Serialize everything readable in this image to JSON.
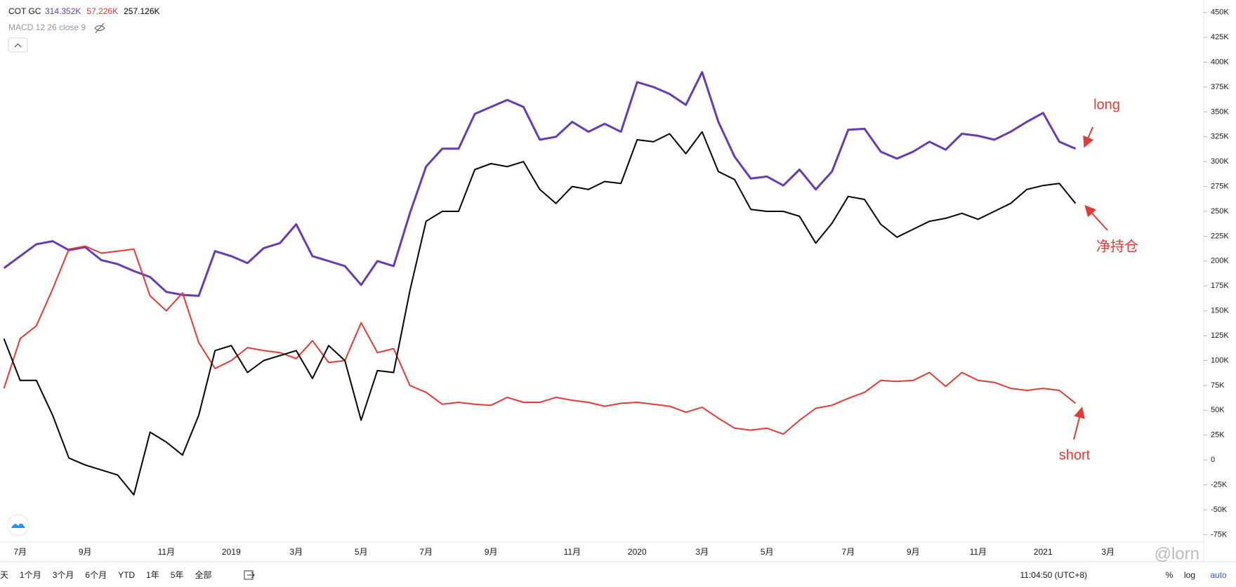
{
  "chart_data": {
    "type": "line",
    "categories": [
      null,
      "7月",
      null,
      null,
      null,
      "9月",
      null,
      null,
      null,
      null,
      "11月",
      null,
      null,
      null,
      "2019",
      null,
      null,
      null,
      "3月",
      null,
      null,
      null,
      "5月",
      null,
      null,
      null,
      "7月",
      null,
      null,
      null,
      "9月",
      null,
      null,
      null,
      null,
      "11月",
      null,
      null,
      null,
      "2020",
      null,
      null,
      null,
      "3月",
      null,
      null,
      null,
      "5月",
      null,
      null,
      null,
      null,
      "7月",
      null,
      null,
      null,
      "9月",
      null,
      null,
      null,
      "11月",
      null,
      null,
      null,
      "2021",
      null,
      null,
      null,
      "3月",
      null,
      null
    ],
    "series": [
      {
        "name": "long",
        "color": "#673ab7",
        "values": [
          193000,
          205000,
          217000,
          220000,
          211000,
          214000,
          201000,
          197000,
          190000,
          184000,
          169000,
          166000,
          165000,
          210000,
          205000,
          198000,
          213000,
          218000,
          237000,
          205000,
          200000,
          195000,
          176000,
          200000,
          195000,
          248000,
          295000,
          313000,
          313000,
          348000,
          355000,
          362000,
          355000,
          322000,
          325000,
          340000,
          330000,
          338000,
          330000,
          380000,
          375000,
          368000,
          357000,
          390000,
          340000,
          305000,
          283000,
          285000,
          276000,
          292000,
          272000,
          290000,
          332000,
          333000,
          310000,
          303000,
          310000,
          320000,
          312000,
          328000,
          326000,
          322000,
          330000,
          340000,
          349000,
          320000,
          313000,
          null,
          null,
          null,
          null
        ]
      },
      {
        "name": "short",
        "color": "#e53935",
        "values": [
          72000,
          122000,
          135000,
          172000,
          212000,
          215000,
          208000,
          210000,
          212000,
          165000,
          150000,
          168000,
          118000,
          92000,
          100000,
          113000,
          110000,
          108000,
          102000,
          120000,
          98000,
          100000,
          138000,
          108000,
          112000,
          75000,
          68000,
          56000,
          58000,
          56000,
          55000,
          63000,
          58000,
          58000,
          63000,
          60000,
          58000,
          54000,
          57000,
          58000,
          56000,
          54000,
          48000,
          53000,
          42000,
          32000,
          30000,
          32000,
          26000,
          40000,
          52000,
          55000,
          62000,
          68000,
          80000,
          79000,
          80000,
          88000,
          74000,
          88000,
          80000,
          78000,
          72000,
          70000,
          72000,
          70000,
          57000,
          null,
          null,
          null,
          null
        ]
      },
      {
        "name": "净持仓",
        "color": "#000000",
        "values": [
          122000,
          80000,
          80000,
          45000,
          2000,
          -5000,
          -10000,
          -15000,
          -35000,
          28000,
          18000,
          5000,
          45000,
          110000,
          115000,
          88000,
          100000,
          105000,
          110000,
          82000,
          115000,
          100000,
          40000,
          90000,
          88000,
          170000,
          240000,
          250000,
          250000,
          292000,
          298000,
          295000,
          300000,
          272000,
          258000,
          275000,
          272000,
          280000,
          278000,
          322000,
          320000,
          328000,
          308000,
          330000,
          290000,
          282000,
          252000,
          250000,
          250000,
          245000,
          218000,
          238000,
          265000,
          262000,
          237000,
          224000,
          232000,
          240000,
          243000,
          248000,
          242000,
          250000,
          258000,
          272000,
          276000,
          278000,
          258000,
          null,
          null,
          null,
          null
        ]
      }
    ],
    "ylim": [
      -82500,
      462500
    ],
    "yticks": [
      {
        "value": 450000,
        "label": "450K"
      },
      {
        "value": 425000,
        "label": "425K"
      },
      {
        "value": 400000,
        "label": "400K"
      },
      {
        "value": 375000,
        "label": "375K"
      },
      {
        "value": 350000,
        "label": "350K"
      },
      {
        "value": 325000,
        "label": "325K"
      },
      {
        "value": 300000,
        "label": "300K"
      },
      {
        "value": 275000,
        "label": "275K"
      },
      {
        "value": 250000,
        "label": "250K"
      },
      {
        "value": 225000,
        "label": "225K"
      },
      {
        "value": 200000,
        "label": "200K"
      },
      {
        "value": 175000,
        "label": "175K"
      },
      {
        "value": 150000,
        "label": "150K"
      },
      {
        "value": 125000,
        "label": "125K"
      },
      {
        "value": 100000,
        "label": "100K"
      },
      {
        "value": 75000,
        "label": "75K"
      },
      {
        "value": 50000,
        "label": "50K"
      },
      {
        "value": 25000,
        "label": "25K"
      },
      0,
      {
        "value": -25000,
        "label": "-25K"
      },
      {
        "value": -50000,
        "label": "-50K"
      },
      {
        "value": -75000,
        "label": "-75K"
      }
    ],
    "grid": false
  },
  "header": {
    "symbol": "COT GC",
    "values": [
      "314.352K",
      "57.226K",
      "257.126K"
    ],
    "indicator": "MACD 12 26 close 9"
  },
  "annotations": {
    "long": "long",
    "net": "净持仓",
    "short": "short"
  },
  "toolbar": {
    "ranges": [
      "天",
      "1个月",
      "3个月",
      "6个月",
      "YTD",
      "1年",
      "5年",
      "全部"
    ],
    "time": "11:04:50 (UTC+8)",
    "percent": "%",
    "log": "log",
    "auto": "auto"
  },
  "watermark": "@lorn"
}
